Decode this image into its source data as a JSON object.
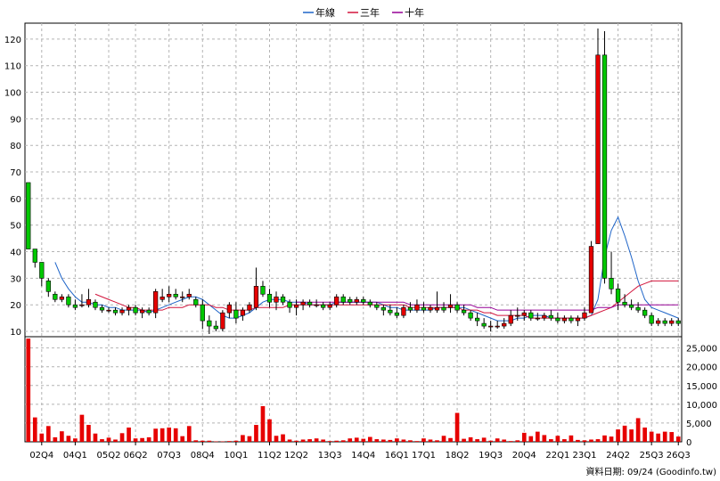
{
  "legend": [
    {
      "label": "年線",
      "color": "#1e64c8"
    },
    {
      "label": "三年",
      "color": "#d2143c"
    },
    {
      "label": "十年",
      "color": "#960096"
    }
  ],
  "footer_text": "資料日期: 09/24 (Goodinfo.tw)",
  "chart_data": [
    {
      "type": "candlestick",
      "panel": "price",
      "ylim": [
        8,
        126
      ],
      "yticks": [
        10,
        20,
        30,
        40,
        50,
        60,
        70,
        80,
        90,
        100,
        110,
        120
      ],
      "grid": true,
      "up_color": "#e60000",
      "down_color": "#00c800",
      "n_periods": 98,
      "ohlc": [
        [
          66,
          66,
          41,
          41
        ],
        [
          41,
          41,
          34,
          36
        ],
        [
          36,
          36,
          27,
          30
        ],
        [
          29,
          30,
          23,
          25
        ],
        [
          24,
          25,
          21,
          22
        ],
        [
          22,
          24,
          21,
          23
        ],
        [
          23,
          24,
          19,
          20
        ],
        [
          20,
          22,
          18,
          19
        ],
        [
          20,
          24,
          19,
          20
        ],
        [
          20,
          26,
          19,
          22
        ],
        [
          21,
          22,
          18,
          19
        ],
        [
          19,
          20,
          17,
          18
        ],
        [
          18,
          19,
          17,
          18
        ],
        [
          18,
          19,
          16,
          17
        ],
        [
          17,
          19,
          16,
          18
        ],
        [
          18,
          20,
          16,
          19
        ],
        [
          19,
          20,
          16,
          17
        ],
        [
          17,
          19,
          15,
          18
        ],
        [
          18,
          19,
          16,
          17
        ],
        [
          17,
          26,
          15,
          25
        ],
        [
          22,
          26,
          21,
          23
        ],
        [
          23,
          27,
          21,
          24
        ],
        [
          24,
          26,
          22,
          23
        ],
        [
          23,
          25,
          21,
          23
        ],
        [
          23,
          26,
          22,
          24
        ],
        [
          22,
          23,
          19,
          20
        ],
        [
          20,
          22,
          11,
          14
        ],
        [
          14,
          16,
          9,
          12
        ],
        [
          12,
          14,
          10,
          11
        ],
        [
          11,
          18,
          10,
          17
        ],
        [
          17,
          21,
          15,
          20
        ],
        [
          18,
          21,
          13,
          15
        ],
        [
          16,
          19,
          14,
          18
        ],
        [
          18,
          21,
          17,
          20
        ],
        [
          19,
          34,
          18,
          27
        ],
        [
          27,
          29,
          23,
          24
        ],
        [
          24,
          26,
          19,
          21
        ],
        [
          21,
          25,
          18,
          23
        ],
        [
          23,
          24,
          20,
          21
        ],
        [
          21,
          22,
          17,
          19
        ],
        [
          19,
          22,
          16,
          20
        ],
        [
          20,
          22,
          18,
          21
        ],
        [
          21,
          22,
          19,
          20
        ],
        [
          20,
          22,
          19,
          20
        ],
        [
          20,
          21,
          18,
          19
        ],
        [
          19,
          21,
          18,
          20
        ],
        [
          20,
          24,
          19,
          23
        ],
        [
          23,
          24,
          20,
          21
        ],
        [
          22,
          23,
          20,
          21
        ],
        [
          21,
          23,
          20,
          22
        ],
        [
          22,
          23,
          20,
          21
        ],
        [
          21,
          22,
          19,
          20
        ],
        [
          20,
          21,
          18,
          19
        ],
        [
          19,
          20,
          16,
          18
        ],
        [
          18,
          20,
          16,
          17
        ],
        [
          17,
          19,
          15,
          16
        ],
        [
          16,
          20,
          15,
          19
        ],
        [
          19,
          21,
          17,
          18
        ],
        [
          18,
          22,
          17,
          20
        ],
        [
          19,
          21,
          17,
          18
        ],
        [
          18,
          20,
          17,
          19
        ],
        [
          18,
          25,
          17,
          19
        ],
        [
          19,
          21,
          17,
          18
        ],
        [
          19,
          24,
          17,
          20
        ],
        [
          20,
          21,
          17,
          18
        ],
        [
          18,
          20,
          16,
          17
        ],
        [
          17,
          18,
          14,
          15
        ],
        [
          15,
          17,
          12,
          14
        ],
        [
          13,
          15,
          11,
          12
        ],
        [
          12,
          14,
          10,
          12
        ],
        [
          12,
          14,
          11,
          12
        ],
        [
          12,
          15,
          11,
          13
        ],
        [
          13,
          18,
          12,
          16
        ],
        [
          16,
          19,
          14,
          16
        ],
        [
          16,
          18,
          14,
          17
        ],
        [
          17,
          18,
          14,
          15
        ],
        [
          15,
          17,
          14,
          15
        ],
        [
          15,
          17,
          14,
          16
        ],
        [
          16,
          18,
          14,
          15
        ],
        [
          15,
          17,
          13,
          14
        ],
        [
          14,
          16,
          13,
          15
        ],
        [
          15,
          16,
          13,
          14
        ],
        [
          14,
          16,
          12,
          15
        ],
        [
          15,
          19,
          14,
          17
        ],
        [
          17,
          44,
          17,
          42
        ],
        [
          43,
          124,
          43,
          114
        ],
        [
          114,
          123,
          28,
          30
        ],
        [
          30,
          40,
          24,
          26
        ],
        [
          26,
          28,
          18,
          21
        ],
        [
          21,
          24,
          19,
          20
        ],
        [
          20,
          22,
          18,
          19
        ],
        [
          19,
          21,
          17,
          18
        ],
        [
          18,
          19,
          15,
          16
        ],
        [
          16,
          17,
          12,
          13
        ],
        [
          13,
          15,
          12,
          14
        ],
        [
          14,
          15,
          12,
          13
        ],
        [
          13,
          15,
          12,
          14
        ],
        [
          14,
          15,
          12,
          13
        ]
      ],
      "series": [
        {
          "name": "年線",
          "color": "#1e64c8",
          "values": [
            null,
            null,
            null,
            null,
            36,
            30,
            26,
            23,
            21,
            21,
            20,
            20,
            19,
            19,
            18,
            18,
            18,
            18,
            17,
            18,
            19,
            20,
            21,
            22,
            23,
            23,
            22,
            20,
            18,
            16,
            15,
            15,
            16,
            17,
            19,
            21,
            22,
            22,
            22,
            21,
            21,
            21,
            20,
            20,
            20,
            20,
            21,
            21,
            21,
            21,
            21,
            21,
            21,
            20,
            19,
            19,
            18,
            18,
            18,
            18,
            18,
            19,
            19,
            19,
            19,
            19,
            18,
            17,
            16,
            15,
            14,
            14,
            14,
            15,
            15,
            16,
            16,
            16,
            15,
            15,
            15,
            15,
            15,
            15,
            16,
            22,
            38,
            48,
            53,
            46,
            38,
            29,
            22,
            19,
            18,
            17,
            16,
            15
          ]
        },
        {
          "name": "三年",
          "color": "#d2143c",
          "values": [
            null,
            null,
            null,
            null,
            null,
            null,
            null,
            null,
            null,
            null,
            24,
            23,
            22,
            21,
            20,
            19,
            19,
            18,
            18,
            18,
            18,
            19,
            19,
            19,
            20,
            20,
            20,
            20,
            19,
            19,
            18,
            18,
            18,
            18,
            19,
            19,
            19,
            19,
            19,
            20,
            20,
            20,
            20,
            20,
            20,
            20,
            20,
            20,
            20,
            20,
            20,
            20,
            20,
            20,
            20,
            20,
            20,
            19,
            19,
            19,
            19,
            19,
            19,
            19,
            19,
            18,
            18,
            18,
            17,
            17,
            16,
            16,
            16,
            16,
            16,
            15,
            15,
            15,
            15,
            15,
            15,
            15,
            15,
            15,
            16,
            17,
            18,
            19,
            21,
            23,
            25,
            27,
            28,
            29,
            29,
            29,
            29,
            29
          ]
        },
        {
          "name": "十年",
          "color": "#960096",
          "values": [
            null,
            null,
            null,
            null,
            null,
            null,
            null,
            null,
            null,
            null,
            null,
            null,
            null,
            null,
            null,
            null,
            null,
            null,
            null,
            null,
            null,
            null,
            null,
            null,
            null,
            null,
            null,
            null,
            null,
            null,
            null,
            null,
            null,
            null,
            null,
            null,
            null,
            null,
            null,
            null,
            21,
            21,
            21,
            21,
            21,
            21,
            21,
            21,
            21,
            21,
            21,
            21,
            21,
            21,
            21,
            21,
            21,
            20,
            20,
            20,
            20,
            20,
            20,
            20,
            20,
            20,
            20,
            19,
            19,
            19,
            18,
            18,
            18,
            18,
            18,
            18,
            18,
            18,
            18,
            18,
            18,
            18,
            18,
            18,
            18,
            19,
            19,
            19,
            20,
            20,
            20,
            20,
            20,
            20,
            20,
            20,
            20,
            20
          ]
        }
      ]
    },
    {
      "type": "bar",
      "panel": "volume",
      "ylim": [
        0,
        28000
      ],
      "yticks": [
        0,
        5000,
        10000,
        15000,
        20000,
        25000
      ],
      "ytick_labels": [
        "0",
        "5,000",
        "10,000",
        "15,000",
        "20,000",
        "25,000"
      ],
      "grid": true,
      "color": "#e60000",
      "values": [
        27500,
        6500,
        2200,
        4200,
        1200,
        2800,
        1600,
        900,
        7200,
        4500,
        2200,
        700,
        1100,
        600,
        2300,
        3800,
        900,
        1000,
        1200,
        3500,
        3600,
        3800,
        3600,
        1500,
        4200,
        400,
        300,
        300,
        100,
        100,
        200,
        300,
        1800,
        1500,
        4500,
        9500,
        6000,
        1600,
        2000,
        600,
        300,
        600,
        700,
        900,
        600,
        200,
        300,
        400,
        900,
        1100,
        800,
        1300,
        700,
        600,
        500,
        900,
        600,
        400,
        200,
        900,
        600,
        400,
        1600,
        1000,
        7700,
        800,
        1200,
        700,
        1100,
        300,
        900,
        600,
        200,
        400,
        2400,
        1500,
        2700,
        1800,
        700,
        1600,
        700,
        1700,
        500,
        400,
        600,
        700,
        1700,
        1400,
        3300,
        4300,
        3300,
        6300,
        3800,
        2700,
        2200,
        2700,
        2600,
        1400
      ]
    }
  ],
  "x_axis": {
    "tick_labels": [
      "02Q4",
      "04Q1",
      "05Q2",
      "06Q2",
      "07Q3",
      "08Q4",
      "10Q1",
      "11Q2",
      "12Q2",
      "13Q3",
      "14Q4",
      "16Q1",
      "17Q1",
      "18Q2",
      "19Q3",
      "20Q4",
      "22Q1",
      "23Q1",
      "24Q2",
      "25Q3",
      "26Q3"
    ],
    "tick_positions": [
      2.5,
      7.5,
      12.5,
      16.5,
      21.5,
      26.5,
      31.5,
      36.5,
      40.5,
      45.5,
      50.5,
      55.5,
      59.5,
      64.5,
      69.5,
      74.5,
      79.5,
      83.5,
      88.5,
      93.5,
      97.5
    ]
  }
}
